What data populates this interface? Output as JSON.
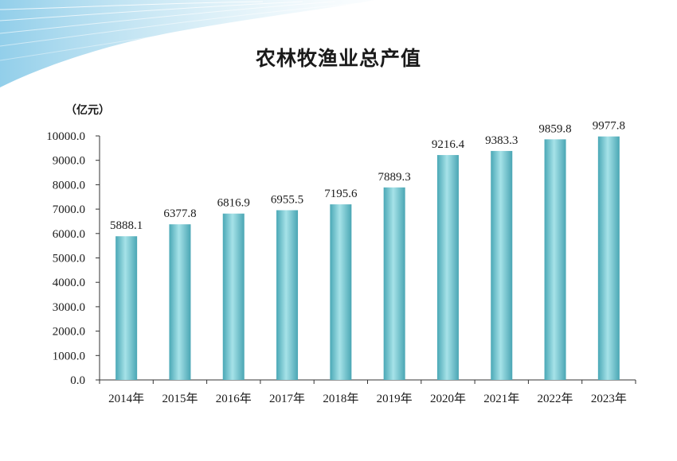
{
  "chart_data": {
    "type": "bar",
    "title": "农林牧渔业总产值",
    "unit_label": "（亿元）",
    "categories": [
      "2014年",
      "2015年",
      "2016年",
      "2017年",
      "2018年",
      "2019年",
      "2020年",
      "2021年",
      "2022年",
      "2023年"
    ],
    "values": [
      5888.1,
      6377.8,
      6816.9,
      6955.5,
      7195.6,
      7889.3,
      9216.4,
      9383.3,
      9859.8,
      9977.8
    ],
    "value_labels": [
      "5888.1",
      "6377.8",
      "6816.9",
      "6955.5",
      "7195.6",
      "7889.3",
      "9216.4",
      "9383.3",
      "9859.8",
      "9977.8"
    ],
    "yticks": [
      "0.0",
      "1000.0",
      "2000.0",
      "3000.0",
      "4000.0",
      "5000.0",
      "6000.0",
      "7000.0",
      "8000.0",
      "9000.0",
      "10000.0"
    ],
    "ylim": [
      0,
      10000
    ],
    "xlabel": "",
    "ylabel": "",
    "grid": false,
    "legend": "none",
    "bar_color": "#5bbcc6"
  }
}
